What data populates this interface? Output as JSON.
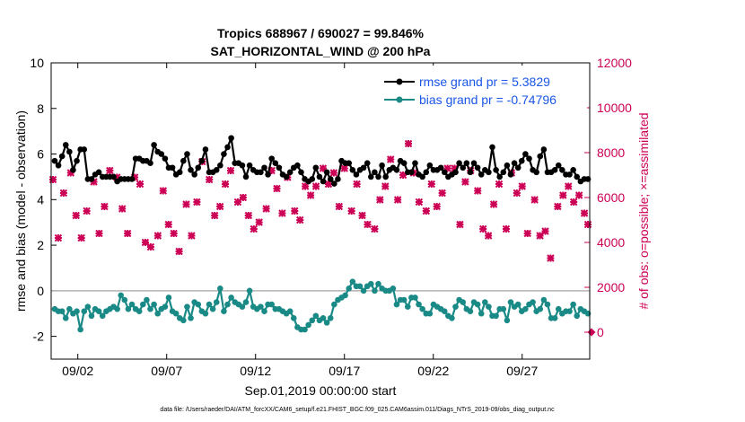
{
  "chart_data": {
    "type": "line",
    "title_line1": "Tropics 688967 / 690027 = 99.846%",
    "title_line2": "SAT_HORIZONTAL_WIND @ 200 hPa",
    "xlabel": "Sep.01,2019 00:00:00 start",
    "ylabel_left": "rmse and bias (model - observation)",
    "ylabel_right": "# of obs: o=possible; ×=assimilated",
    "footnote": "data file: /Users/raeder/DAI/ATM_forcXX/CAM6_setup/f.e21.FHIST_BGC.f09_025.CAM6assim.011/Diags_NTrS_2019-09/obs_diag_output.nc",
    "xlim": [
      0.5,
      30.8
    ],
    "ylim_left": [
      -3,
      10
    ],
    "ylim_right": [
      -1200,
      12000
    ],
    "x_ticks": [
      2,
      7,
      12,
      17,
      22,
      27
    ],
    "x_tick_labels": [
      "09/02",
      "09/07",
      "09/12",
      "09/17",
      "09/22",
      "09/27"
    ],
    "y_ticks_left": [
      -2,
      0,
      2,
      4,
      6,
      8,
      10
    ],
    "y_ticks_right": [
      0,
      2000,
      4000,
      6000,
      8000,
      10000,
      12000
    ],
    "legend": [
      {
        "label": "rmse grand pr = 5.3829",
        "color": "#000000"
      },
      {
        "label": "bias grand pr = -0.74796",
        "color": "#1a8a86"
      }
    ],
    "series": [
      {
        "name": "rmse",
        "color": "#000000",
        "marker": "circle",
        "values": [
          5.7,
          5.5,
          5.9,
          6.4,
          6.1,
          5.3,
          5.7,
          6.2,
          6.2,
          4.9,
          4.9,
          5.1,
          5.2,
          5.0,
          5.0,
          5.0,
          5.0,
          4.8,
          4.9,
          4.9,
          4.9,
          4.9,
          5.8,
          5.8,
          5.7,
          5.7,
          5.6,
          6.4,
          6.1,
          6.0,
          5.8,
          5.4,
          5.4,
          5.1,
          5.2,
          5.7,
          6.0,
          5.3,
          5.1,
          5.4,
          5.7,
          6.2,
          5.2,
          5.2,
          5.3,
          5.5,
          6.0,
          6.3,
          6.7,
          5.6,
          5.6,
          5.5,
          5.0,
          5.5,
          5.3,
          5.2,
          5.2,
          5.4,
          5.1,
          5.8,
          5.6,
          5.4,
          5.1,
          5.0,
          5.2,
          5.4,
          5.5,
          5.2,
          4.9,
          4.8,
          4.9,
          5.4,
          5.0,
          4.8,
          5.2,
          4.9,
          4.7,
          4.9,
          5.7,
          5.6,
          5.6,
          5.3,
          5.1,
          5.3,
          5.4,
          5.6,
          5.0,
          5.2,
          5.0,
          5.5,
          5.0,
          5.3,
          5.4,
          5.3,
          5.7,
          5.6,
          5.2,
          5.2,
          5.6,
          5.1,
          5.0,
          5.2,
          5.5,
          5.3,
          5.3,
          5.4,
          5.2,
          5.0,
          5.1,
          5.2,
          5.6,
          5.4,
          5.6,
          5.2,
          5.6,
          5.4,
          5.1,
          5.3,
          5.2,
          6.3,
          5.3,
          5.0,
          5.2,
          5.5,
          5.1,
          5.6,
          5.4,
          5.7,
          6.0,
          5.8,
          5.3,
          5.2,
          5.9,
          6.2,
          5.2,
          5.2,
          5.3,
          5.5,
          5.3,
          5.1,
          5.1,
          5.3,
          5.0,
          4.8,
          4.9,
          4.9
        ]
      },
      {
        "name": "bias",
        "color": "#1a8a86",
        "marker": "circle",
        "values": [
          -0.8,
          -0.9,
          -0.9,
          -1.2,
          -0.8,
          -1.0,
          -0.9,
          -1.7,
          -0.9,
          -0.7,
          -1.1,
          -0.8,
          -0.9,
          -1.1,
          -0.9,
          -0.8,
          -0.7,
          -0.8,
          -0.2,
          -0.4,
          -0.8,
          -0.6,
          -0.8,
          -0.9,
          -0.6,
          -0.4,
          -0.8,
          -0.6,
          -1.0,
          -0.8,
          -0.7,
          -0.3,
          -0.9,
          -1.0,
          -1.2,
          -1.3,
          -0.7,
          -1.2,
          -0.5,
          -0.6,
          -0.9,
          -1.0,
          -0.6,
          -0.8,
          -0.5,
          0.1,
          -0.9,
          -0.6,
          -0.3,
          -0.5,
          -0.6,
          -0.7,
          -0.5,
          0.0,
          -0.7,
          -0.8,
          -0.7,
          -0.9,
          -0.6,
          -0.6,
          -0.8,
          -0.8,
          -0.9,
          -1.0,
          -0.9,
          -1.2,
          -1.6,
          -1.7,
          -1.7,
          -1.5,
          -1.3,
          -1.1,
          -1.3,
          -1.2,
          -1.4,
          -1.2,
          -0.6,
          -0.4,
          -0.3,
          -0.2,
          0.1,
          0.4,
          0.2,
          0.2,
          0.0,
          0.2,
          0.3,
          0.0,
          0.3,
          0.1,
          0.0,
          0.0,
          0.1,
          -0.6,
          -0.4,
          -0.4,
          -0.7,
          -0.3,
          -0.3,
          -0.6,
          -0.8,
          -1.0,
          -1.0,
          -0.6,
          -0.7,
          -0.8,
          -0.9,
          -1.1,
          -1.2,
          -0.7,
          -0.4,
          -0.5,
          -0.8,
          -0.9,
          -0.5,
          -0.6,
          -1.0,
          -0.5,
          -0.7,
          -1.1,
          -1.1,
          -0.8,
          -0.8,
          -1.3,
          -0.5,
          -0.7,
          -0.6,
          -0.9,
          -0.8,
          -0.6,
          -0.5,
          -0.9,
          -0.8,
          -0.4,
          -0.6,
          -1.2,
          -1.2,
          -0.8,
          -1.0,
          -0.9,
          -0.9,
          -0.6,
          -1.1,
          -0.8,
          -0.9,
          -1.0
        ]
      },
      {
        "name": "obs_possible",
        "axis": "right",
        "color": "#cc0055",
        "marker": "o",
        "x": [
          30.9
        ],
        "values": [
          0
        ]
      },
      {
        "name": "obs_assimilated",
        "axis": "right",
        "color": "#cc0055",
        "marker": "x",
        "x": [
          0.6,
          0.9,
          1.2,
          1.6,
          1.9,
          2.2,
          2.5,
          2.9,
          3.2,
          3.5,
          3.8,
          4.2,
          4.5,
          4.8,
          5.2,
          5.5,
          5.8,
          6.1,
          6.5,
          6.8,
          7.1,
          7.4,
          7.7,
          8.1,
          8.4,
          8.7,
          9.0,
          9.4,
          9.7,
          10.0,
          10.3,
          10.6,
          11.0,
          11.3,
          11.6,
          11.9,
          12.2,
          12.6,
          12.9,
          13.2,
          13.5,
          13.8,
          14.2,
          14.5,
          14.8,
          15.1,
          15.4,
          15.8,
          16.1,
          16.4,
          16.7,
          17.0,
          17.4,
          17.7,
          18.0,
          18.3,
          18.7,
          19.0,
          19.3,
          19.6,
          20.0,
          20.3,
          20.6,
          20.9,
          21.2,
          21.6,
          21.9,
          22.2,
          22.5,
          22.8,
          23.2,
          23.5,
          23.8,
          24.1,
          24.5,
          24.8,
          25.1,
          25.4,
          25.7,
          26.1,
          26.4,
          26.7,
          27.0,
          27.3,
          27.7,
          28.0,
          28.3,
          28.6,
          29.0,
          29.3,
          29.6,
          29.9,
          30.2,
          30.5,
          30.7
        ],
        "values": [
          6800,
          4200,
          6200,
          7100,
          5200,
          4200,
          5400,
          6700,
          4400,
          5600,
          7200,
          6900,
          5500,
          4400,
          6900,
          6600,
          4000,
          3800,
          4300,
          6300,
          4800,
          4400,
          3600,
          5700,
          4300,
          5800,
          7600,
          6800,
          5200,
          5600,
          6600,
          7200,
          5800,
          6000,
          5200,
          4600,
          4900,
          5500,
          7200,
          6400,
          5300,
          6900,
          5400,
          5000,
          6500,
          6100,
          6500,
          7300,
          6600,
          7100,
          5600,
          7300,
          5400,
          6600,
          5200,
          4800,
          4600,
          5900,
          6500,
          7700,
          5900,
          7000,
          8400,
          7100,
          5800,
          5400,
          6600,
          5600,
          6200,
          7300,
          7300,
          4800,
          6700,
          7200,
          6300,
          4600,
          4300,
          5700,
          6600,
          4600,
          7100,
          6200,
          6500,
          4400,
          5900,
          4300,
          4500,
          3300,
          5600,
          6100,
          6500,
          5800,
          6100,
          5300,
          4800
        ]
      }
    ]
  }
}
